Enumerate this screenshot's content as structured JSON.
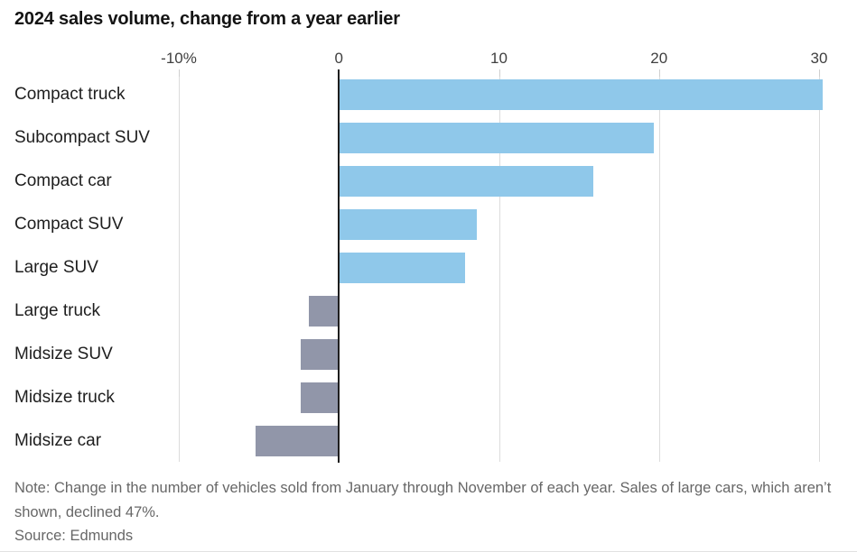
{
  "title": "2024 sales volume, change from a year earlier",
  "note": "Note: Change in the number of vehicles sold from January through November of each year. Sales of large cars, which aren’t shown, declined 47%.",
  "source": "Source: Edmunds",
  "chart_data": {
    "type": "bar",
    "orientation": "horizontal",
    "title": "2024 sales volume, change from a year earlier",
    "categories": [
      "Compact truck",
      "Subcompact SUV",
      "Compact car",
      "Compact SUV",
      "Large SUV",
      "Large truck",
      "Midsize SUV",
      "Midsize truck",
      "Midsize car"
    ],
    "values": [
      30.2,
      19.7,
      15.9,
      8.6,
      7.9,
      -1.9,
      -2.4,
      -2.4,
      -5.2
    ],
    "unit": "percent",
    "xlabel": "",
    "ylabel": "",
    "xlim": [
      -10,
      30
    ],
    "x_ticks": [
      {
        "value": -10,
        "label": "-10%"
      },
      {
        "value": 0,
        "label": "0"
      },
      {
        "value": 10,
        "label": "10"
      },
      {
        "value": 20,
        "label": "20"
      },
      {
        "value": 30,
        "label": "30"
      }
    ],
    "grid": "vertical-only",
    "legend": "none",
    "colors": {
      "positive_bar": "#8fc8ea",
      "negative_bar": "#9196a9",
      "gridline": "#dcdcdc",
      "zero_line": "#1e1e1e",
      "title_text": "#141414",
      "tick_text": "#3f3f3f",
      "note_text": "#676767"
    }
  }
}
